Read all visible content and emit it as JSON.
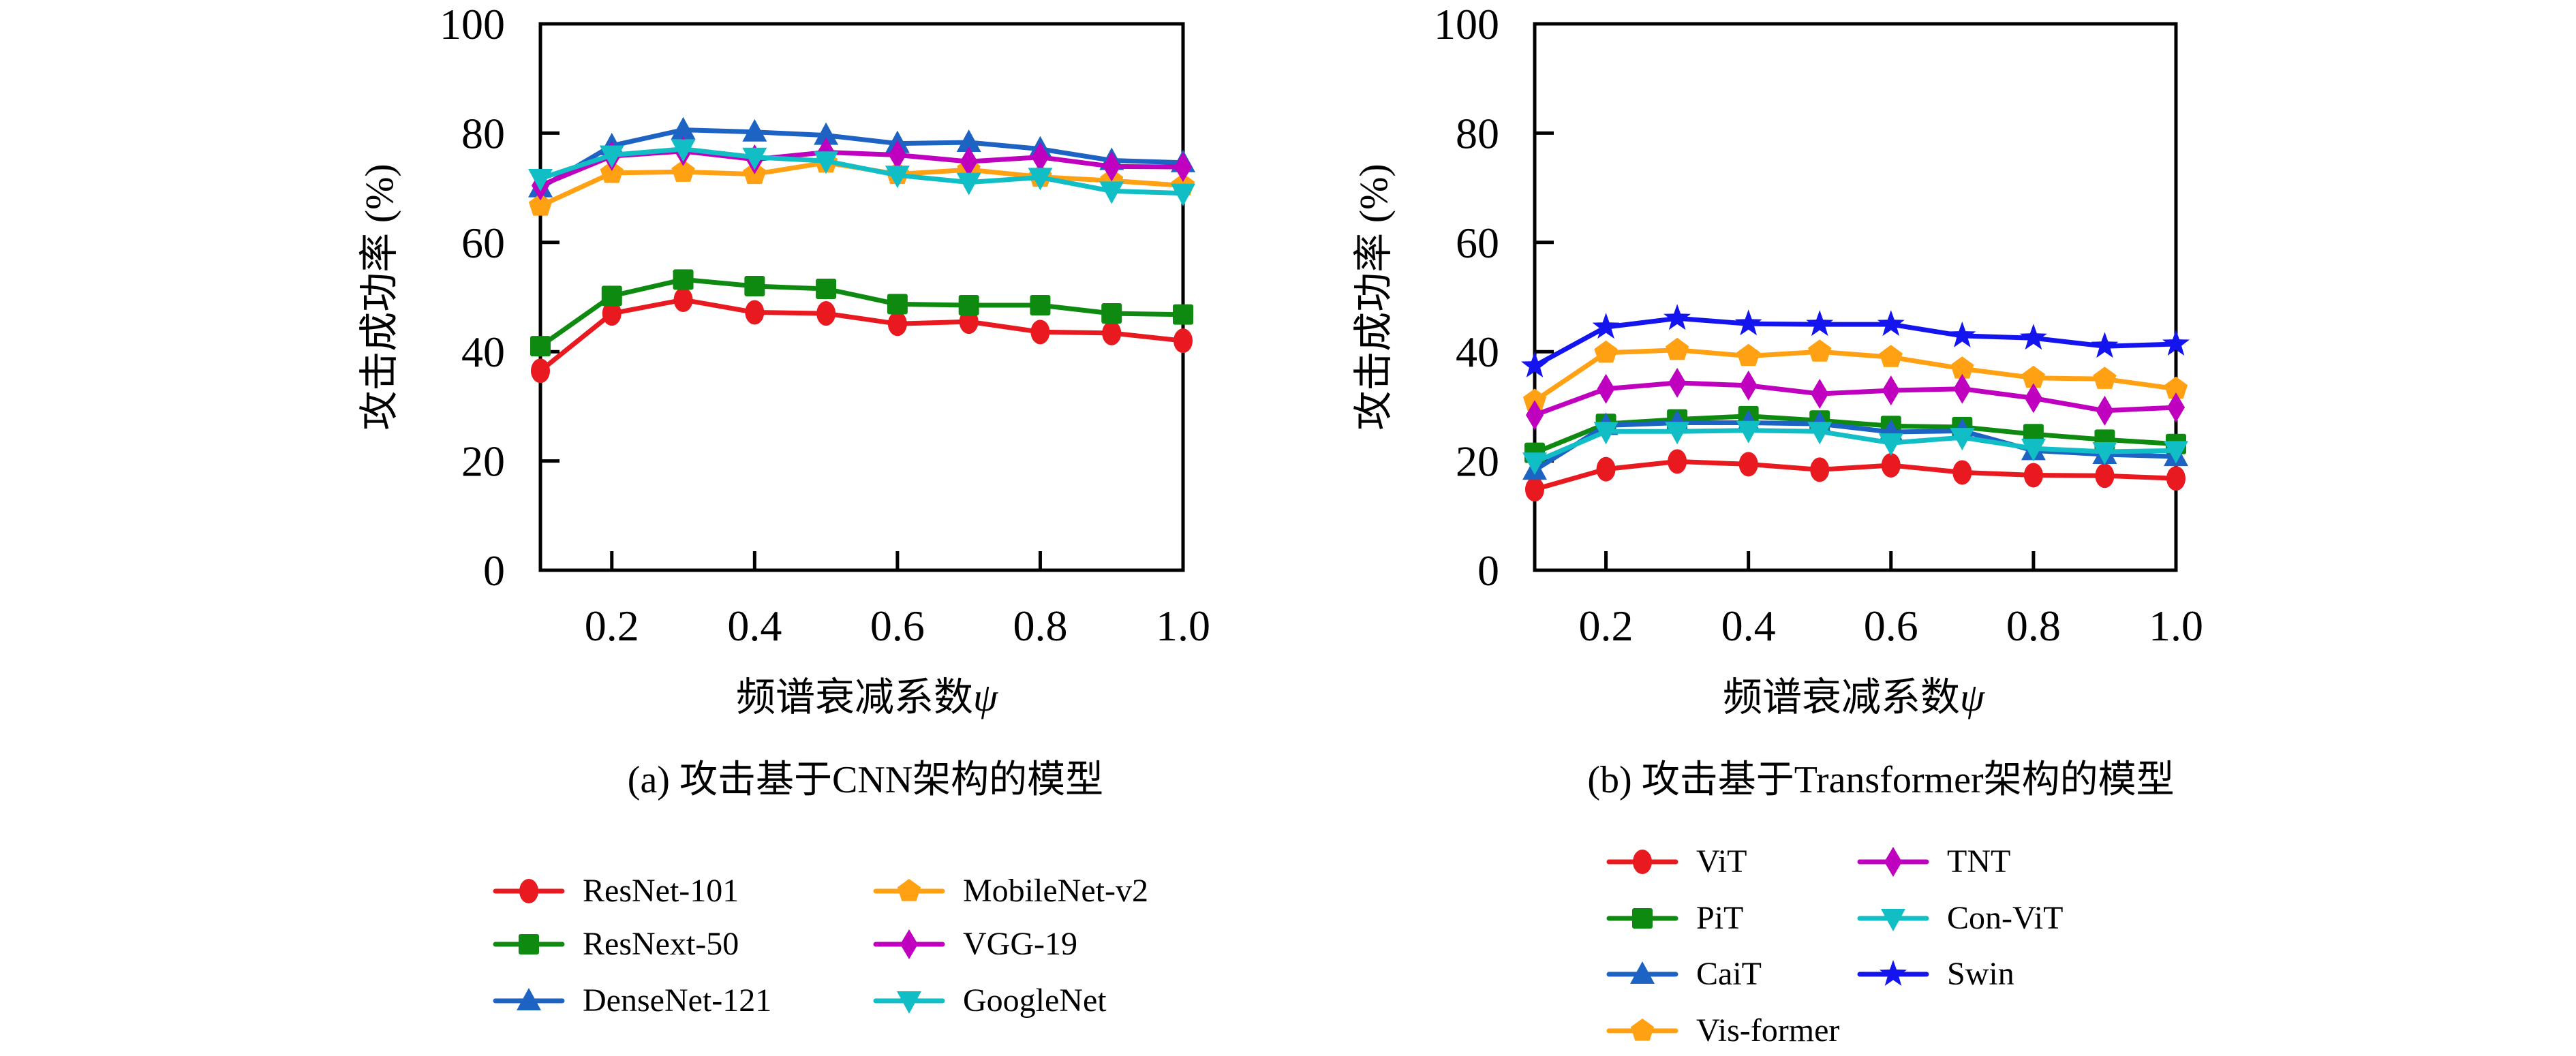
{
  "figure": {
    "background": "#ffffff",
    "text_color": "#000000",
    "axis_color": "#000000"
  },
  "chart_data": [
    {
      "id": "a",
      "type": "line",
      "caption": "(a) 攻击基于CNN架构的模型",
      "xlabel": "频谱衰减系数",
      "xlabel_symbol": "ψ",
      "ylabel": "攻击成功率 (%)",
      "xlim": [
        0.1,
        1.0
      ],
      "ylim": [
        0,
        100
      ],
      "grid": false,
      "legend_position": "below",
      "x": [
        0.1,
        0.2,
        0.3,
        0.4,
        0.5,
        0.6,
        0.7,
        0.8,
        0.9,
        1.0
      ],
      "x_ticks": [
        0.2,
        0.4,
        0.6,
        0.8,
        1.0
      ],
      "x_tick_labels": [
        "0.2",
        "0.4",
        "0.6",
        "0.8",
        "1.0"
      ],
      "y_ticks": [
        0,
        20,
        40,
        60,
        80,
        100
      ],
      "y_tick_labels": [
        "0",
        "20",
        "40",
        "60",
        "80",
        "100"
      ],
      "series": [
        {
          "name": "ResNet-101",
          "color": "#e8191f",
          "marker": "circle",
          "values": [
            36.5,
            47.0,
            49.5,
            47.2,
            47.0,
            45.1,
            45.5,
            43.6,
            43.4,
            42.0
          ]
        },
        {
          "name": "ResNext-50",
          "color": "#0f8a10",
          "marker": "square",
          "values": [
            41.0,
            50.2,
            53.2,
            52.0,
            51.5,
            48.7,
            48.5,
            48.5,
            47.0,
            46.8
          ]
        },
        {
          "name": "DenseNet-121",
          "color": "#1d63c4",
          "marker": "triangle-up",
          "values": [
            70.0,
            77.7,
            80.6,
            80.2,
            79.6,
            78.1,
            78.3,
            77.1,
            75.0,
            74.6
          ]
        },
        {
          "name": "MobileNet-v2",
          "color": "#ffa113",
          "marker": "pentagon",
          "values": [
            66.7,
            72.7,
            72.9,
            72.5,
            74.6,
            72.5,
            73.3,
            72.0,
            71.3,
            70.4
          ]
        },
        {
          "name": "VGG-19",
          "color": "#bf00bf",
          "marker": "diamond",
          "values": [
            70.4,
            75.8,
            76.7,
            75.2,
            76.5,
            76.0,
            74.8,
            75.6,
            73.9,
            73.8
          ]
        },
        {
          "name": "GoogleNet",
          "color": "#12bec6",
          "marker": "triangle-down",
          "values": [
            71.7,
            76.0,
            77.1,
            75.6,
            74.9,
            72.3,
            71.0,
            71.9,
            69.4,
            69.0
          ]
        }
      ],
      "legend_columns": [
        [
          "ResNet-101",
          "ResNext-50",
          "DenseNet-121"
        ],
        [
          "MobileNet-v2",
          "VGG-19",
          "GoogleNet"
        ]
      ]
    },
    {
      "id": "b",
      "type": "line",
      "caption": "(b) 攻击基于Transformer架构的模型",
      "xlabel": "频谱衰减系数",
      "xlabel_symbol": "ψ",
      "ylabel": "攻击成功率 (%)",
      "xlim": [
        0.1,
        1.0
      ],
      "ylim": [
        0,
        100
      ],
      "grid": false,
      "legend_position": "below",
      "x": [
        0.1,
        0.2,
        0.3,
        0.4,
        0.5,
        0.6,
        0.7,
        0.8,
        0.9,
        1.0
      ],
      "x_ticks": [
        0.2,
        0.4,
        0.6,
        0.8,
        1.0
      ],
      "x_tick_labels": [
        "0.2",
        "0.4",
        "0.6",
        "0.8",
        "1.0"
      ],
      "y_ticks": [
        0,
        20,
        40,
        60,
        80,
        100
      ],
      "y_tick_labels": [
        "0",
        "20",
        "40",
        "60",
        "80",
        "100"
      ],
      "series": [
        {
          "name": "ViT",
          "color": "#e8191f",
          "marker": "circle",
          "values": [
            14.8,
            18.5,
            19.9,
            19.4,
            18.4,
            19.2,
            17.9,
            17.4,
            17.3,
            16.8
          ]
        },
        {
          "name": "PiT",
          "color": "#0f8a10",
          "marker": "square",
          "values": [
            21.5,
            26.8,
            27.6,
            28.2,
            27.4,
            26.4,
            26.2,
            24.9,
            23.9,
            23.1
          ]
        },
        {
          "name": "CaiT",
          "color": "#1d63c4",
          "marker": "triangle-up",
          "values": [
            18.3,
            26.5,
            27.0,
            27.0,
            26.8,
            25.3,
            25.5,
            21.9,
            21.2,
            20.8
          ]
        },
        {
          "name": "Vis-former",
          "color": "#ffa113",
          "marker": "pentagon",
          "values": [
            31.0,
            39.8,
            40.3,
            39.2,
            40.0,
            39.0,
            36.9,
            35.2,
            35.0,
            33.2
          ]
        },
        {
          "name": "TNT",
          "color": "#bf00bf",
          "marker": "diamond",
          "values": [
            28.4,
            33.2,
            34.3,
            33.8,
            32.3,
            32.9,
            33.2,
            31.5,
            29.2,
            29.8
          ]
        },
        {
          "name": "Con-ViT",
          "color": "#12bec6",
          "marker": "triangle-down",
          "values": [
            19.8,
            25.4,
            25.4,
            25.6,
            25.4,
            23.3,
            24.3,
            22.3,
            21.7,
            21.9
          ]
        },
        {
          "name": "Swin",
          "color": "#1414ee",
          "marker": "star",
          "values": [
            37.4,
            44.5,
            46.1,
            45.1,
            45.0,
            45.0,
            42.9,
            42.5,
            41.0,
            41.4
          ]
        }
      ],
      "legend_columns": [
        [
          "ViT",
          "PiT",
          "CaiT",
          "Vis-former"
        ],
        [
          "TNT",
          "Con-ViT",
          "Swin"
        ]
      ]
    }
  ]
}
